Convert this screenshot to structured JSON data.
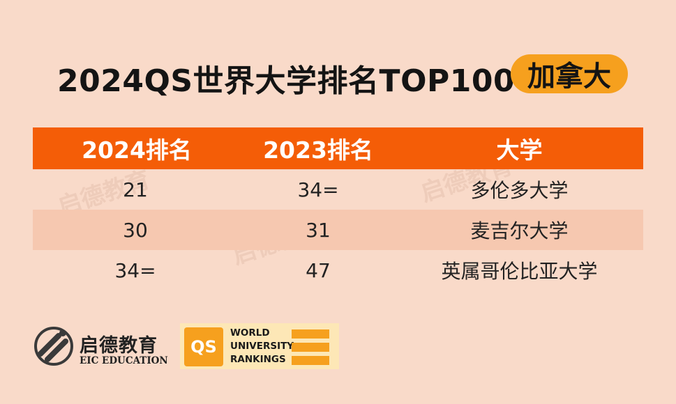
{
  "title": {
    "text": "2024QS世界大学排名TOP100",
    "badge": "加拿大"
  },
  "table": {
    "headers": [
      "2024排名",
      "2023排名",
      "大学"
    ],
    "rows": [
      {
        "rank_2024": "21",
        "rank_2023": "34=",
        "university": "多伦多大学"
      },
      {
        "rank_2024": "30",
        "rank_2023": "31",
        "university": "麦吉尔大学"
      },
      {
        "rank_2024": "34=",
        "rank_2023": "47",
        "university": "英属哥伦比亚大学"
      }
    ]
  },
  "brand": {
    "eic_cn": "启德教育",
    "eic_en": "EIC EDUCATION",
    "qs_mark": "QS",
    "qs_line1": "WORLD",
    "qs_line2": "UNIVERSITY",
    "qs_line3": "RANKINGS"
  },
  "colors": {
    "background": "#f9dac9",
    "header_orange": "#f45d07",
    "badge_yellow": "#f6a01e",
    "alt_row": "#f6c8b0"
  }
}
